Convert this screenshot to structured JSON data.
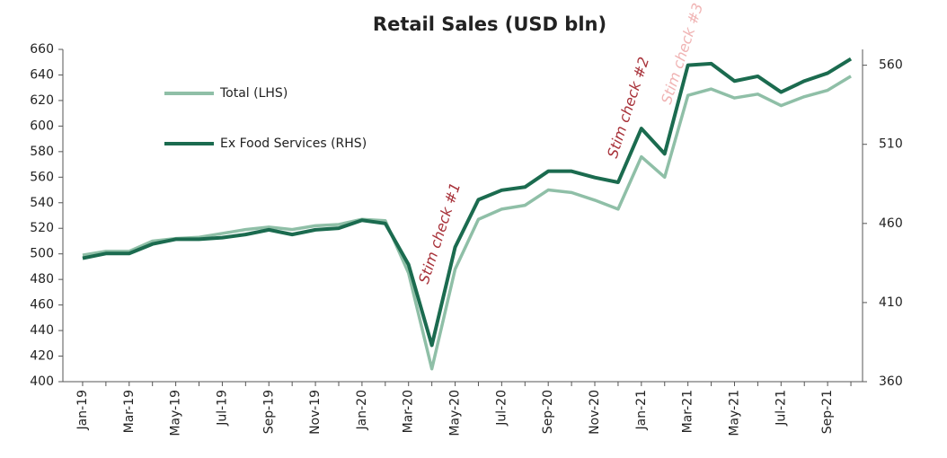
{
  "chart_data": {
    "type": "line",
    "title": "Retail Sales (USD bln)",
    "categories": [
      "Jan-19",
      null,
      "Mar-19",
      null,
      "May-19",
      null,
      "Jul-19",
      null,
      "Sep-19",
      null,
      "Nov-19",
      null,
      "Jan-20",
      null,
      "Mar-20",
      null,
      "May-20",
      null,
      "Jul-20",
      null,
      "Sep-20",
      null,
      "Nov-20",
      null,
      "Jan-21",
      null,
      "Mar-21",
      null,
      "May-21",
      null,
      "Jul-21",
      null,
      "Sep-21",
      null
    ],
    "series": [
      {
        "name": "Total (LHS)",
        "color": "#8fbfa7",
        "values": [
          499,
          502,
          502,
          510,
          512,
          513,
          516,
          519,
          521,
          519,
          522,
          523,
          527,
          526,
          485,
          410,
          488,
          527,
          535,
          538,
          550,
          548,
          542,
          535,
          576,
          560,
          624,
          629,
          622,
          625,
          616,
          623,
          628,
          639
        ]
      },
      {
        "name": "Ex Food Services (RHS)",
        "color": "#1b6b4f",
        "axis": "y2",
        "values": [
          438,
          441,
          441,
          447,
          450,
          450,
          451,
          453,
          456,
          453,
          456,
          457,
          462,
          460,
          434,
          383,
          445,
          475,
          481,
          483,
          493,
          493,
          489,
          486,
          520,
          504,
          560,
          561,
          550,
          553,
          543,
          550,
          555,
          564
        ]
      }
    ],
    "ylim": [
      400,
      660
    ],
    "yticks": [
      400,
      420,
      440,
      460,
      480,
      500,
      520,
      540,
      560,
      580,
      600,
      620,
      640,
      660
    ],
    "y2lim": [
      360,
      570
    ],
    "y2ticks": [
      360,
      410,
      460,
      510,
      560
    ],
    "annotations": [
      {
        "text": "Stim check #1",
        "color": "#a8323a"
      },
      {
        "text": "Stim check #2",
        "color": "#a8323a"
      },
      {
        "text": "Stim check #3",
        "color": "#f0b4b4"
      }
    ]
  }
}
